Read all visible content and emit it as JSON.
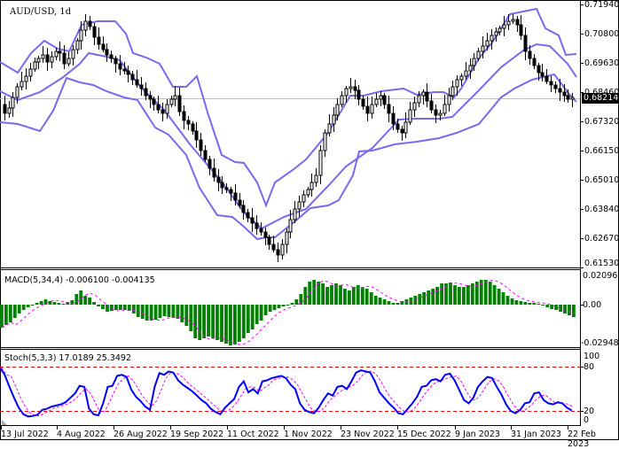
{
  "chart": {
    "symbol_title": "AUD/USD, 1d",
    "current_price": "0.68214",
    "price_axis_labels": [
      "0.71940",
      "0.70800",
      "0.69630",
      "0.68460",
      "0.67320",
      "0.66150",
      "0.65010",
      "0.63840",
      "0.62670",
      "0.61530"
    ],
    "macd_title": "MACD(5,34,4) -0.006100 -0.004135",
    "macd_axis_labels": [
      "0.020965",
      "0.00",
      "-0.029484"
    ],
    "stoch_title": "Stoch(5,3,3) 17.0189 25.3492",
    "stoch_axis_labels": [
      "100",
      "80",
      "20",
      "0"
    ],
    "date_labels": [
      "13 Jul 2022",
      "4 Aug 2022",
      "26 Aug 2022",
      "19 Sep 2022",
      "11 Oct 2022",
      "1 Nov 2022",
      "23 Nov 2022",
      "15 Dec 2022",
      "9 Jan 2023",
      "31 Jan 2023",
      "22 Feb 2023"
    ],
    "colors": {
      "bollinger": "#7b68ee",
      "macd_hist": "#008000",
      "macd_signal": "#ff00ff",
      "stoch_main": "#0000ff",
      "stoch_signal": "#ff00ff",
      "stoch_levels": "#ff0000",
      "current_price_line": "#c0c0c0"
    }
  },
  "chart_data": [
    {
      "type": "candlestick",
      "title": "AUD/USD, 1d",
      "indicator": "Bollinger Bands",
      "x": [
        "13 Jul 2022",
        "4 Aug 2022",
        "26 Aug 2022",
        "19 Sep 2022",
        "11 Oct 2022",
        "1 Nov 2022",
        "23 Nov 2022",
        "15 Dec 2022",
        "9 Jan 2023",
        "31 Jan 2023",
        "22 Feb 2023"
      ],
      "close_approx": [
        0.674,
        0.699,
        0.689,
        0.66,
        0.623,
        0.642,
        0.676,
        0.672,
        0.694,
        0.708,
        0.6821
      ],
      "last_price": 0.68214,
      "ylim": [
        0.6153,
        0.7194
      ],
      "yticks": [
        0.7194,
        0.708,
        0.6963,
        0.6846,
        0.6732,
        0.6615,
        0.6501,
        0.6384,
        0.6267,
        0.6153
      ]
    },
    {
      "type": "bar",
      "title": "MACD(5,34,4)",
      "last_values": {
        "macd": -0.0061,
        "signal": -0.004135
      },
      "ylim": [
        -0.029484,
        0.020965
      ],
      "yticks": [
        0.020965,
        0.0,
        -0.029484
      ]
    },
    {
      "type": "line",
      "title": "Stoch(5,3,3)",
      "last_values": {
        "main": 17.0189,
        "signal": 25.3492
      },
      "levels": [
        20,
        80
      ],
      "ylim": [
        0,
        100
      ],
      "yticks": [
        100,
        80,
        20,
        0
      ]
    }
  ]
}
